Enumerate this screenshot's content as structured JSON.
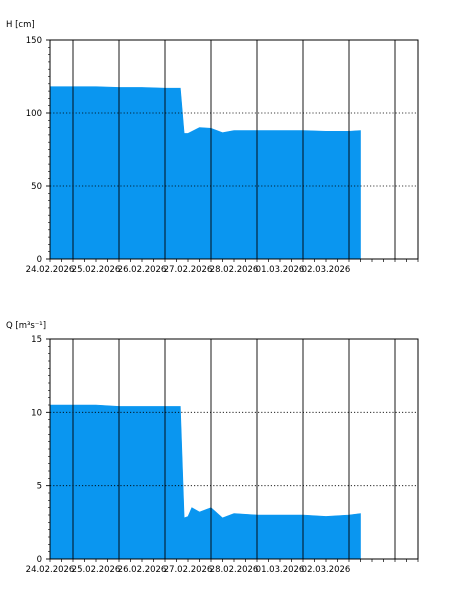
{
  "charts": [
    {
      "ylabel": "H [cm]",
      "yticks": [
        "0",
        "50",
        "100",
        "150"
      ],
      "xticks": [
        "24.02.2026",
        "25.02.2026",
        "26.02.2026",
        "27.02.2026",
        "28.02.2026",
        "01.03.2026",
        "02.03.2026"
      ]
    },
    {
      "ylabel": "Q [m³s⁻¹]",
      "yticks": [
        "0",
        "5",
        "10",
        "15"
      ],
      "xticks": [
        "24.02.2026",
        "25.02.2026",
        "26.02.2026",
        "27.02.2026",
        "28.02.2026",
        "01.03.2026",
        "02.03.2026"
      ]
    }
  ],
  "chart_data": [
    {
      "type": "area",
      "ylabel": "H [cm]",
      "ylim": [
        0,
        150
      ],
      "xlim": [
        "2026-02-23T12:00",
        "2026-03-03T12:00"
      ],
      "grid": "vertical solid at midnights, horizontal dotted at 50 and 100",
      "fill_color": "#0a96f0",
      "series": [
        {
          "x": [
            "2026-02-23T12:00",
            "2026-02-24T00:00",
            "2026-02-24T12:00",
            "2026-02-25T00:00",
            "2026-02-25T12:00",
            "2026-02-26T00:00",
            "2026-02-26T08:00",
            "2026-02-26T10:00",
            "2026-02-26T12:00",
            "2026-02-26T18:00",
            "2026-02-27T00:00",
            "2026-02-27T06:00",
            "2026-02-27T12:00",
            "2026-02-28T00:00",
            "2026-02-28T12:00",
            "2026-03-01T00:00",
            "2026-03-01T12:00",
            "2026-03-02T00:00",
            "2026-03-02T06:00"
          ],
          "values": [
            118,
            118,
            118,
            117.5,
            117.5,
            117,
            117,
            86,
            86,
            90,
            89.5,
            86.5,
            88,
            88,
            88,
            88,
            87.5,
            87.5,
            88
          ]
        }
      ]
    },
    {
      "type": "area",
      "ylabel": "Q [m³s⁻¹]",
      "ylim": [
        0,
        15
      ],
      "xlim": [
        "2026-02-23T12:00",
        "2026-03-03T12:00"
      ],
      "grid": "vertical solid at midnights, horizontal dotted at 5 and 10",
      "fill_color": "#0a96f0",
      "series": [
        {
          "x": [
            "2026-02-23T12:00",
            "2026-02-24T00:00",
            "2026-02-24T12:00",
            "2026-02-25T00:00",
            "2026-02-25T12:00",
            "2026-02-26T00:00",
            "2026-02-26T08:00",
            "2026-02-26T10:00",
            "2026-02-26T12:00",
            "2026-02-26T14:00",
            "2026-02-26T18:00",
            "2026-02-27T00:00",
            "2026-02-27T06:00",
            "2026-02-27T12:00",
            "2026-02-28T00:00",
            "2026-02-28T12:00",
            "2026-03-01T00:00",
            "2026-03-01T12:00",
            "2026-03-02T00:00",
            "2026-03-02T06:00"
          ],
          "values": [
            10.5,
            10.5,
            10.5,
            10.4,
            10.4,
            10.4,
            10.4,
            2.8,
            2.9,
            3.5,
            3.2,
            3.5,
            2.8,
            3.1,
            3.0,
            3.0,
            3.0,
            2.9,
            3.0,
            3.1
          ]
        }
      ]
    }
  ]
}
